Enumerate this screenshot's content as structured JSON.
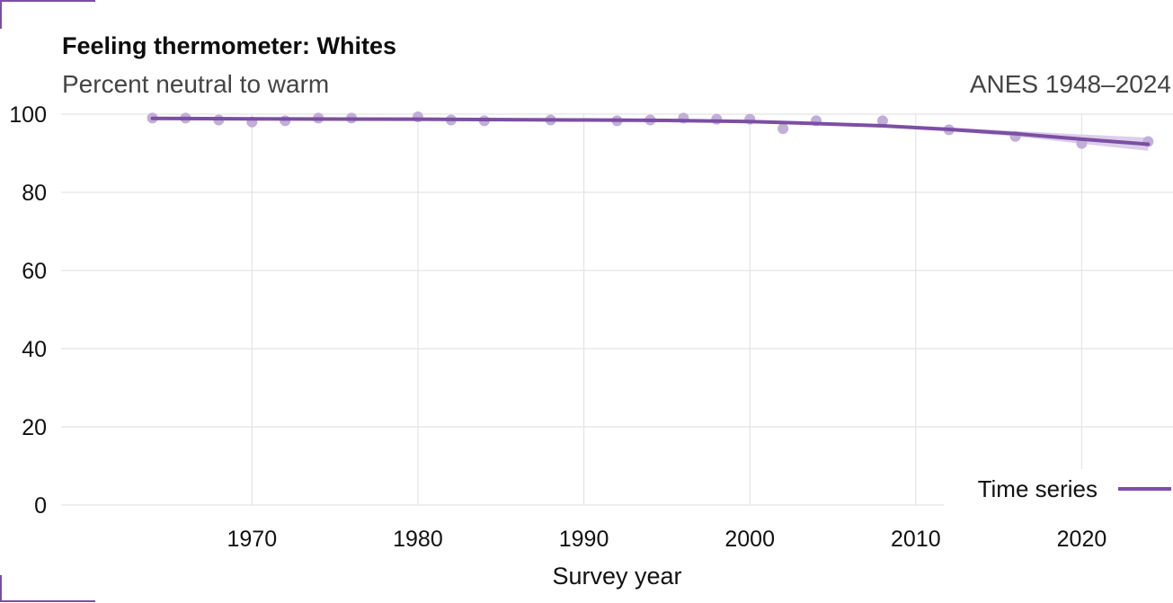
{
  "header": {
    "title": "Feeling thermometer: Whites",
    "subtitle": "Percent neutral to warm",
    "source": "ANES 1948–2024"
  },
  "colors": {
    "series": "#7b4fa3",
    "points": "#c2aed9",
    "band": "#d6c7e6",
    "grid": "#e4e4e4"
  },
  "chart_data": {
    "type": "scatter",
    "title": "Feeling thermometer: Whites",
    "subtitle": "Percent neutral to warm",
    "xlabel": "Survey year",
    "ylabel": "",
    "xlim": [
      1958.5,
      2025.5
    ],
    "ylim": [
      0,
      100
    ],
    "x_ticks": [
      1970,
      1980,
      1990,
      2000,
      2010,
      2020
    ],
    "y_ticks": [
      0,
      20,
      40,
      60,
      80,
      100
    ],
    "grid": true,
    "legend": {
      "position": "bottom-right",
      "entries": [
        "Time series"
      ]
    },
    "points": [
      {
        "x": 1964,
        "y": 99.0
      },
      {
        "x": 1966,
        "y": 99.0
      },
      {
        "x": 1968,
        "y": 98.5
      },
      {
        "x": 1970,
        "y": 98.0
      },
      {
        "x": 1972,
        "y": 98.3
      },
      {
        "x": 1974,
        "y": 99.0
      },
      {
        "x": 1976,
        "y": 99.0
      },
      {
        "x": 1980,
        "y": 99.3
      },
      {
        "x": 1982,
        "y": 98.5
      },
      {
        "x": 1984,
        "y": 98.3
      },
      {
        "x": 1988,
        "y": 98.5
      },
      {
        "x": 1992,
        "y": 98.3
      },
      {
        "x": 1994,
        "y": 98.5
      },
      {
        "x": 1996,
        "y": 99.0
      },
      {
        "x": 1998,
        "y": 98.7
      },
      {
        "x": 2000,
        "y": 98.7
      },
      {
        "x": 2002,
        "y": 96.3
      },
      {
        "x": 2004,
        "y": 98.3
      },
      {
        "x": 2008,
        "y": 98.3
      },
      {
        "x": 2012,
        "y": 96.0
      },
      {
        "x": 2016,
        "y": 94.3
      },
      {
        "x": 2020,
        "y": 92.5
      },
      {
        "x": 2024,
        "y": 93.0
      }
    ],
    "series": [
      {
        "name": "Time series",
        "type": "line",
        "x": [
          1964,
          1970,
          1980,
          1990,
          1995,
          2000,
          2004,
          2008,
          2012,
          2016,
          2020,
          2024
        ],
        "y": [
          98.9,
          98.8,
          98.7,
          98.5,
          98.4,
          98.1,
          97.6,
          97.0,
          96.1,
          95.0,
          93.6,
          92.3
        ],
        "band_upper": [
          99.2,
          99.1,
          99.0,
          98.8,
          98.7,
          98.4,
          97.9,
          97.4,
          96.6,
          95.7,
          94.8,
          94.0
        ],
        "band_lower": [
          98.6,
          98.5,
          98.4,
          98.2,
          98.1,
          97.8,
          97.3,
          96.6,
          95.6,
          94.3,
          92.4,
          90.6
        ]
      }
    ]
  }
}
